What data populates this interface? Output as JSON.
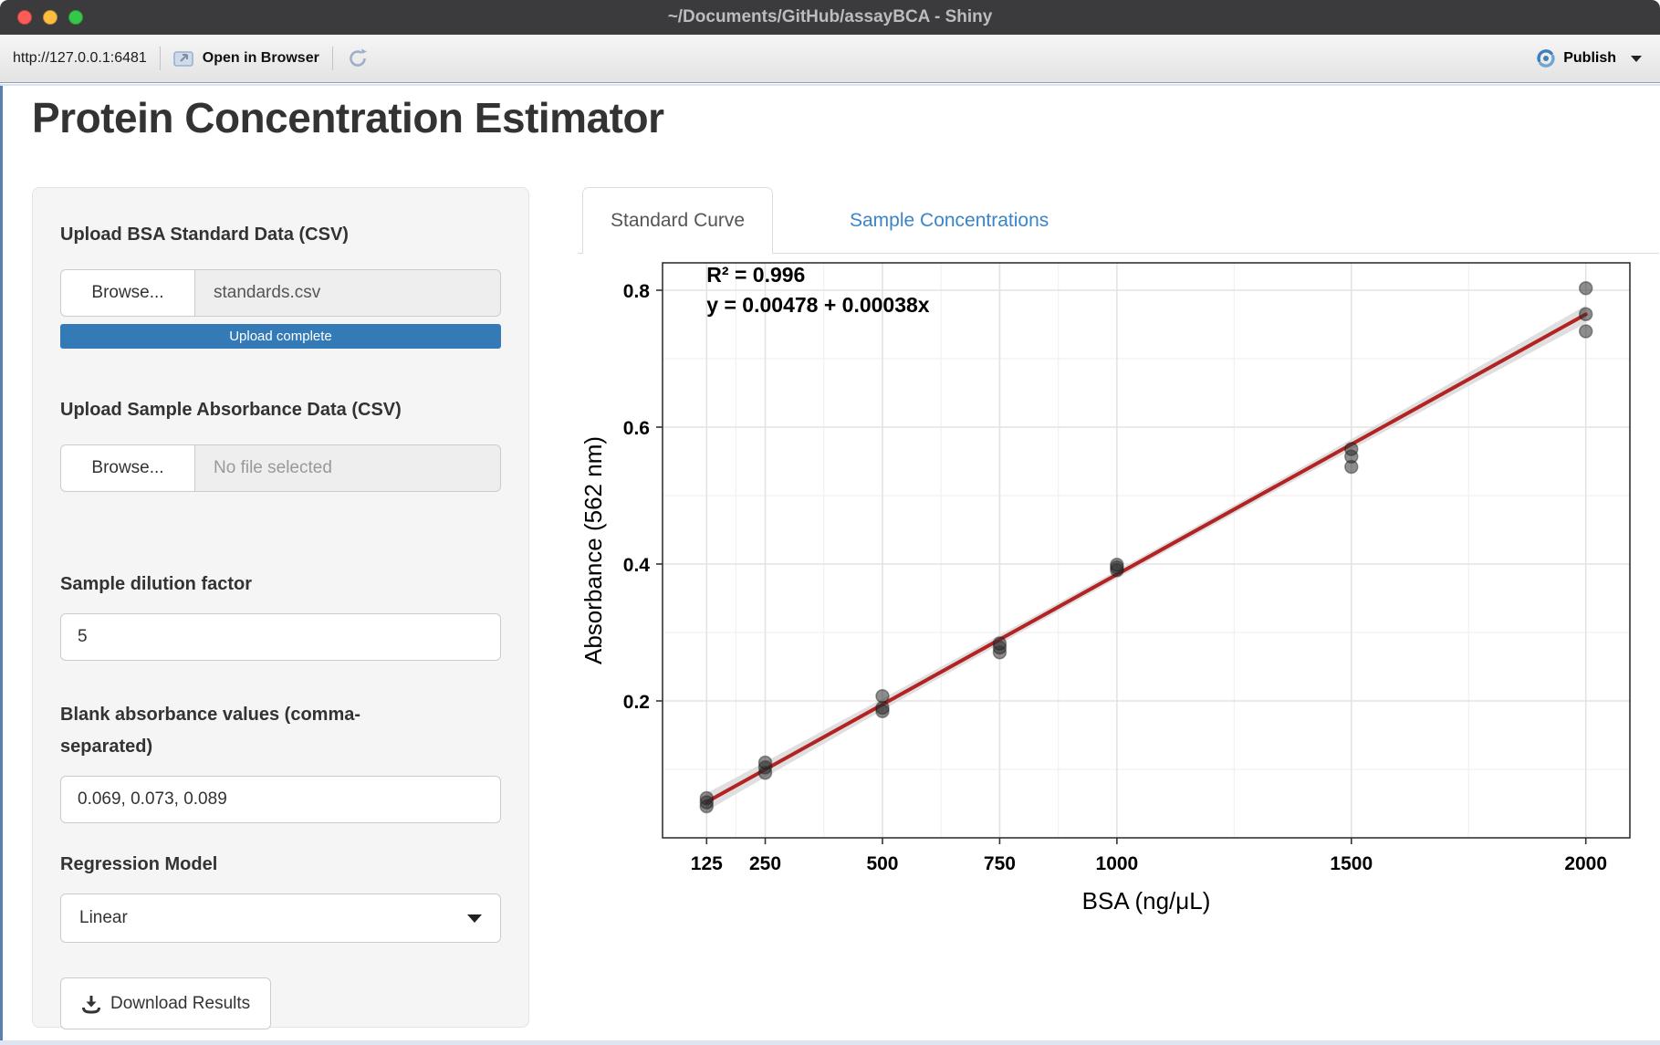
{
  "window": {
    "title": "~/Documents/GitHub/assayBCA - Shiny"
  },
  "toolbar": {
    "url": "http://127.0.0.1:6481",
    "open_in_browser_label": "Open in Browser",
    "publish_label": "Publish"
  },
  "app": {
    "title": "Protein Concentration Estimator",
    "sidebar": {
      "upload_standard": {
        "label": "Upload BSA Standard Data (CSV)",
        "browse_label": "Browse...",
        "file_name": "standards.csv",
        "progress_text": "Upload complete"
      },
      "upload_sample": {
        "label": "Upload Sample Absorbance Data (CSV)",
        "browse_label": "Browse...",
        "file_placeholder": "No file selected"
      },
      "dilution": {
        "label": "Sample dilution factor",
        "value": "5"
      },
      "blanks": {
        "label": "Blank absorbance values (comma-separated)",
        "value": "0.069, 0.073, 0.089"
      },
      "regression": {
        "label": "Regression Model",
        "selected": "Linear"
      },
      "download": {
        "label": "Download Results"
      }
    },
    "tabs": [
      {
        "label": "Standard Curve",
        "active": true
      },
      {
        "label": "Sample Concentrations",
        "active": false
      }
    ]
  },
  "chart_data": {
    "type": "scatter",
    "title": "",
    "xlabel": "BSA (ng/μL)",
    "ylabel": "Absorbance (562 nm)",
    "annotation_lines": [
      "R² = 0.996",
      "y = 0.00478 + 0.00038x"
    ],
    "x_breaks": [
      125,
      250,
      500,
      750,
      1000,
      1500,
      2000
    ],
    "x_minor_breaks": [
      187.5,
      375,
      625,
      875,
      1250,
      1750
    ],
    "y_breaks": [
      0.2,
      0.4,
      0.6,
      0.8
    ],
    "y_minor_breaks": [
      0.1,
      0.3,
      0.5,
      0.7
    ],
    "xlim": [
      31,
      2094
    ],
    "ylim": [
      0.0,
      0.84
    ],
    "grid": true,
    "legend": null,
    "points": [
      {
        "x": 125,
        "y": [
          0.046,
          0.052,
          0.058
        ]
      },
      {
        "x": 250,
        "y": [
          0.095,
          0.103,
          0.11
        ]
      },
      {
        "x": 500,
        "y": [
          0.185,
          0.19,
          0.207
        ]
      },
      {
        "x": 750,
        "y": [
          0.271,
          0.278,
          0.284
        ]
      },
      {
        "x": 1000,
        "y": [
          0.391,
          0.395,
          0.399
        ]
      },
      {
        "x": 1500,
        "y": [
          0.542,
          0.557,
          0.568
        ]
      },
      {
        "x": 2000,
        "y": [
          0.74,
          0.765,
          0.803
        ]
      }
    ],
    "fit": {
      "intercept": 0.00478,
      "slope": 0.00038,
      "x_range": [
        125,
        2000
      ],
      "r_squared": 0.996
    },
    "colors": {
      "line": "#b32323",
      "ribbon": "#d9d9d9",
      "point": "#2f2f2f",
      "grid_major": "#e3e3e3",
      "grid_minor": "#f1f1f1",
      "panel_border": "#333333"
    }
  }
}
